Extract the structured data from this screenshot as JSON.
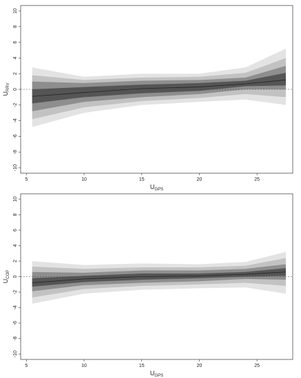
{
  "chart_data": [
    {
      "type": "band",
      "xlabel": "U",
      "xlabel_sub": "GPS",
      "ylabel": "U",
      "ylabel_sub": "RRV",
      "x": [
        5.5,
        10,
        15,
        20,
        24,
        27.5
      ],
      "bands": [
        {
          "color": "#e3e3e3",
          "lower": [
            -4.8,
            -3.0,
            -2.0,
            -1.6,
            -1.3,
            -2.0
          ],
          "upper": [
            2.8,
            1.6,
            2.0,
            2.0,
            2.8,
            5.2
          ]
        },
        {
          "color": "#c2c2c2",
          "lower": [
            -3.8,
            -2.3,
            -1.5,
            -1.1,
            -0.6,
            -1.0
          ],
          "upper": [
            1.8,
            1.2,
            1.5,
            1.6,
            2.1,
            4.0
          ]
        },
        {
          "color": "#8e8e8e",
          "lower": [
            -2.8,
            -1.6,
            -1.0,
            -0.6,
            0.0,
            0.0
          ],
          "upper": [
            1.0,
            0.8,
            1.1,
            1.2,
            1.5,
            3.0
          ]
        },
        {
          "color": "#555555",
          "lower": [
            -1.8,
            -1.0,
            -0.5,
            -0.2,
            0.4,
            0.5
          ],
          "upper": [
            0.0,
            0.3,
            0.6,
            0.8,
            1.1,
            2.1
          ]
        }
      ],
      "center": {
        "color": "#222222",
        "values": [
          -0.9,
          -0.4,
          0.1,
          0.3,
          0.7,
          1.2
        ]
      },
      "hline": 0,
      "xlim": [
        4.5,
        28.1
      ],
      "ylim": [
        -10.7,
        10.7
      ],
      "xticks": [
        5,
        10,
        15,
        20,
        25
      ],
      "yticks": [
        -10,
        -8,
        -6,
        -4,
        -2,
        0,
        2,
        4,
        6,
        8,
        10
      ]
    },
    {
      "type": "band",
      "xlabel": "U",
      "xlabel_sub": "GPS",
      "ylabel": "U",
      "ylabel_sub": "COP",
      "x": [
        5.5,
        10,
        15,
        20,
        24,
        27.5
      ],
      "bands": [
        {
          "color": "#e3e3e3",
          "lower": [
            -3.5,
            -2.2,
            -1.7,
            -1.5,
            -1.4,
            -2.2
          ],
          "upper": [
            2.0,
            1.5,
            1.7,
            1.6,
            1.9,
            3.2
          ]
        },
        {
          "color": "#c2c2c2",
          "lower": [
            -2.7,
            -1.6,
            -1.2,
            -1.0,
            -0.8,
            -1.2
          ],
          "upper": [
            1.3,
            1.0,
            1.2,
            1.2,
            1.4,
            2.4
          ]
        },
        {
          "color": "#8e8e8e",
          "lower": [
            -1.9,
            -1.1,
            -0.8,
            -0.6,
            -0.3,
            -0.4
          ],
          "upper": [
            0.6,
            0.5,
            0.8,
            0.8,
            1.0,
            1.6
          ]
        },
        {
          "color": "#555555",
          "lower": [
            -1.3,
            -0.7,
            -0.4,
            -0.2,
            0.0,
            0.1
          ],
          "upper": [
            -0.2,
            0.1,
            0.4,
            0.4,
            0.6,
            1.1
          ]
        }
      ],
      "center": {
        "color": "#222222",
        "values": [
          -0.8,
          -0.3,
          0.0,
          0.1,
          0.3,
          0.6
        ]
      },
      "hline": 0,
      "xlim": [
        4.5,
        28.1
      ],
      "ylim": [
        -10.7,
        10.7
      ],
      "xticks": [
        5,
        10,
        15,
        20,
        25
      ],
      "yticks": [
        -10,
        -8,
        -6,
        -4,
        -2,
        0,
        2,
        4,
        6,
        8,
        10
      ]
    }
  ]
}
